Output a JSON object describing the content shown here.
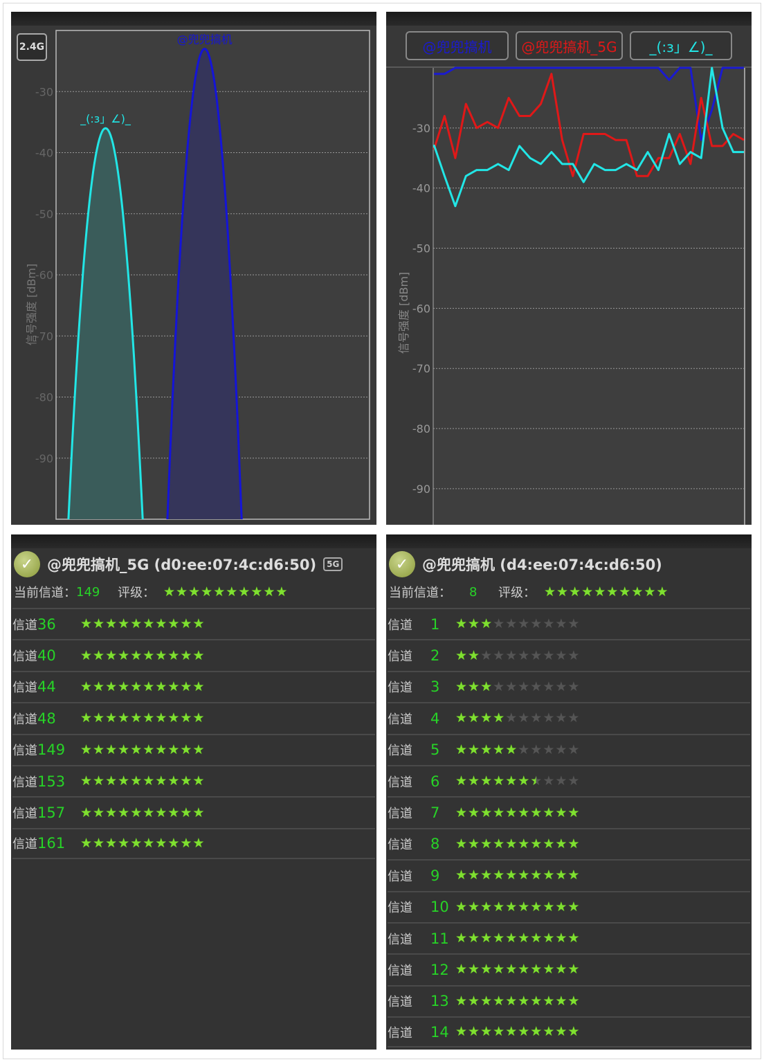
{
  "spectrum": {
    "band_label": "2.4G",
    "ylabel": "信号强度 [dBm]",
    "chart_data": {
      "type": "area",
      "yticks": [
        -30,
        -40,
        -50,
        -60,
        -70,
        -80,
        -90
      ],
      "ylim": [
        -100,
        -20
      ],
      "xlim": [
        -1,
        18
      ],
      "series": [
        {
          "name": "_(:з」∠)_",
          "channel": 2,
          "peak": -36,
          "color": "#22e6e6",
          "fill": "#3a5c5a"
        },
        {
          "name": "@兜兜搞机",
          "channel": 8,
          "peak": -23,
          "color": "#1414d8",
          "fill": "#35355a"
        }
      ]
    }
  },
  "history": {
    "buttons": [
      {
        "label": "@兜兜搞机",
        "color": "#1a1ad0"
      },
      {
        "label": "@兜兜搞机_5G",
        "color": "#e01818"
      },
      {
        "label": "_(:з」∠)_",
        "color": "#22e6e6"
      }
    ],
    "ylabel": "信号强度 [dBm]",
    "chart_data": {
      "type": "line",
      "yticks": [
        -30,
        -40,
        -50,
        -60,
        -70,
        -80,
        -90
      ],
      "ylim": [
        -96,
        -20
      ],
      "series": [
        {
          "name": "@兜兜搞机",
          "color": "#1a1ad0",
          "values": [
            -21,
            -21,
            -20,
            -20,
            -20,
            -20,
            -20,
            -20,
            -20,
            -20,
            -20,
            -20,
            -20,
            -20,
            -20,
            -20,
            -20,
            -20,
            -20,
            -20,
            -20,
            -20,
            -22,
            -20,
            -20,
            -32,
            -27,
            -20,
            -20,
            -20
          ]
        },
        {
          "name": "@兜兜搞机_5G",
          "color": "#e01818",
          "values": [
            -33.6,
            -28,
            -35,
            -26,
            -30,
            -29,
            -30,
            -25,
            -28,
            -28,
            -26,
            -21,
            -32,
            -38,
            -31,
            -31,
            -31,
            -32,
            -32,
            -38,
            -38,
            -35,
            -35,
            -31,
            -36,
            -25,
            -33,
            -33,
            -31,
            -32
          ]
        },
        {
          "name": "_(:з」∠)_",
          "color": "#22e6e6",
          "values": [
            -32.8,
            -38,
            -43,
            -38,
            -37,
            -37,
            -36,
            -37,
            -33,
            -35,
            -36,
            -34,
            -36,
            -36,
            -39,
            -36,
            -37,
            -37,
            -36,
            -37,
            -34,
            -37,
            -31,
            -36,
            -34,
            -35,
            -20,
            -30,
            -34,
            -34
          ]
        }
      ]
    }
  },
  "net5g": {
    "title": "@兜兜搞机_5G (d0:ee:07:4c:d6:50)",
    "badge": "5G",
    "current_label": "当前信道：",
    "current": "149",
    "rating_label": "评级：",
    "rating": 10,
    "row_label": "信道",
    "channels": [
      {
        "ch": "36",
        "rating": 10
      },
      {
        "ch": "40",
        "rating": 10
      },
      {
        "ch": "44",
        "rating": 10
      },
      {
        "ch": "48",
        "rating": 10
      },
      {
        "ch": "149",
        "rating": 10
      },
      {
        "ch": "153",
        "rating": 10
      },
      {
        "ch": "157",
        "rating": 10
      },
      {
        "ch": "161",
        "rating": 10
      }
    ]
  },
  "net24": {
    "title": "@兜兜搞机 (d4:ee:07:4c:d6:50)",
    "current_label": "当前信道：",
    "current": "8",
    "rating_label": "评级：",
    "rating": 10,
    "row_label": "信道",
    "channels": [
      {
        "ch": "1",
        "rating": 3
      },
      {
        "ch": "2",
        "rating": 2
      },
      {
        "ch": "3",
        "rating": 3
      },
      {
        "ch": "4",
        "rating": 4
      },
      {
        "ch": "5",
        "rating": 5
      },
      {
        "ch": "6",
        "rating": 6.5
      },
      {
        "ch": "7",
        "rating": 10
      },
      {
        "ch": "8",
        "rating": 10
      },
      {
        "ch": "9",
        "rating": 10
      },
      {
        "ch": "10",
        "rating": 10
      },
      {
        "ch": "11",
        "rating": 10
      },
      {
        "ch": "12",
        "rating": 10
      },
      {
        "ch": "13",
        "rating": 10
      },
      {
        "ch": "14",
        "rating": 10
      }
    ]
  }
}
